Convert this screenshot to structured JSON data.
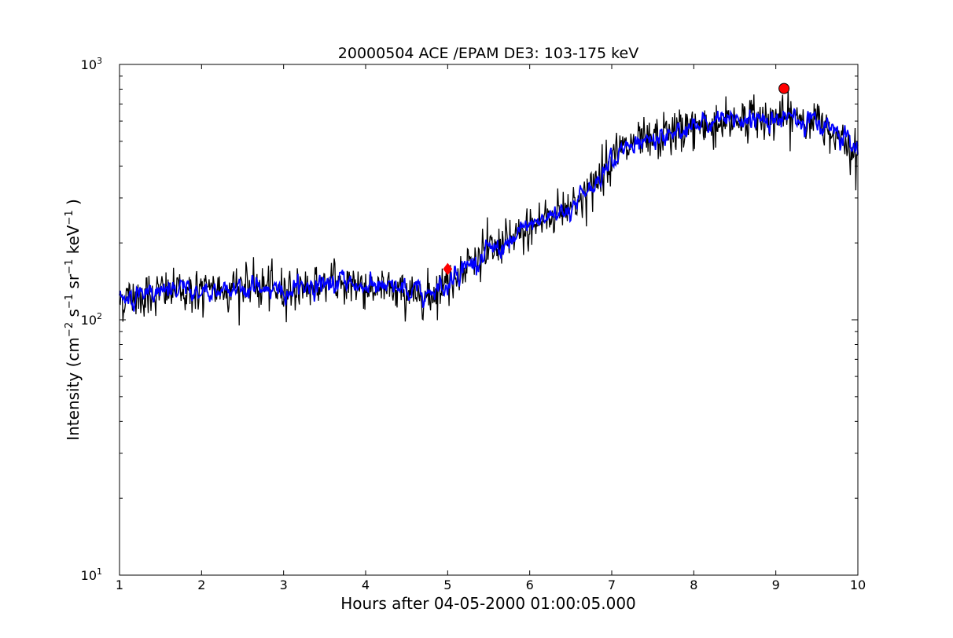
{
  "chart_data": {
    "type": "line",
    "title": "20000504 ACE /EPAM DE3: 103-175 keV",
    "xlabel": "Hours after 04-05-2000 01:00:05.000",
    "ylabel": {
      "prefix": "Intensity (cm",
      "exp1": "−2",
      "mid1": " s",
      "exp2": "−1",
      "mid2": " sr",
      "exp3": "−1",
      "mid3": " keV",
      "exp4": "−1",
      "suffix": " )"
    },
    "xlim": [
      1,
      10
    ],
    "ylim": [
      10,
      1000
    ],
    "yscale": "log",
    "grid": false,
    "x_ticks": [
      "1",
      "2",
      "3",
      "4",
      "5",
      "6",
      "7",
      "8",
      "9",
      "10"
    ],
    "y_ticks": [
      {
        "base": "10",
        "exp": "1"
      },
      {
        "base": "10",
        "exp": "2"
      },
      {
        "base": "10",
        "exp": "3"
      }
    ],
    "colors": {
      "raw": "#000000",
      "smoothed": "#0000ff",
      "marker": "#ff0000"
    },
    "series": [
      {
        "style": "raw",
        "x": [
          1.0,
          1.25,
          1.5,
          1.75,
          2.0,
          2.25,
          2.5,
          2.75,
          3.0,
          3.25,
          3.5,
          3.75,
          4.0,
          4.25,
          4.5,
          4.75,
          5.0,
          5.25,
          5.5,
          5.75,
          6.0,
          6.25,
          6.5,
          6.75,
          7.0,
          7.25,
          7.5,
          7.75,
          8.0,
          8.25,
          8.5,
          8.75,
          9.0,
          9.25,
          9.5,
          9.75,
          10.0
        ],
        "y": [
          120,
          125,
          128,
          130,
          128,
          132,
          135,
          133,
          130,
          135,
          138,
          140,
          135,
          132,
          128,
          125,
          140,
          165,
          185,
          200,
          230,
          255,
          280,
          320,
          440,
          480,
          500,
          540,
          570,
          580,
          610,
          615,
          610,
          620,
          590,
          540,
          460
        ],
        "min_values": [
          90,
          85,
          95,
          90,
          82,
          95,
          90,
          88,
          72,
          90,
          80,
          90,
          68,
          85,
          80,
          57,
          100,
          140,
          155,
          175,
          185,
          215,
          240,
          270,
          380,
          360,
          330,
          400,
          480,
          500,
          520,
          530,
          500,
          550,
          500,
          460,
          380
        ]
      },
      {
        "style": "smoothed",
        "x": [
          1.0,
          1.25,
          1.5,
          1.75,
          2.0,
          2.25,
          2.5,
          2.75,
          3.0,
          3.25,
          3.5,
          3.75,
          4.0,
          4.25,
          4.5,
          4.75,
          5.0,
          5.25,
          5.5,
          5.75,
          6.0,
          6.25,
          6.5,
          6.75,
          7.0,
          7.25,
          7.5,
          7.75,
          8.0,
          8.25,
          8.5,
          8.75,
          9.0,
          9.25,
          9.5,
          9.75,
          10.0
        ],
        "y": [
          120,
          125,
          128,
          130,
          128,
          132,
          135,
          133,
          130,
          135,
          138,
          140,
          135,
          132,
          128,
          125,
          140,
          165,
          185,
          200,
          230,
          255,
          280,
          320,
          440,
          480,
          500,
          540,
          570,
          580,
          610,
          615,
          610,
          620,
          590,
          540,
          460
        ]
      }
    ],
    "markers": [
      {
        "kind": "diamond",
        "x": 5.0,
        "y": 158
      },
      {
        "kind": "circle",
        "x": 9.1,
        "y": 805
      }
    ]
  }
}
